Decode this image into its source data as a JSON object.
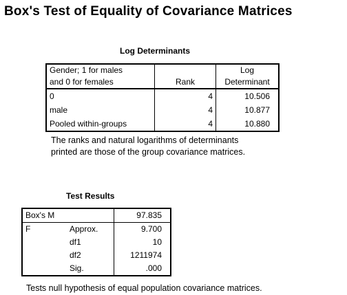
{
  "title": "Box's Test of Equality of Covariance Matrices",
  "log_determinants": {
    "caption": "Log Determinants",
    "headers": {
      "label": "Gender; 1 for males and 0 for females",
      "label_line1": "Gender; 1 for males",
      "label_line2": "and 0 for females",
      "rank": "Rank",
      "logdet_line1": "Log",
      "logdet_line2": "Determinant"
    },
    "rows": [
      {
        "label": "0",
        "rank": "4",
        "log_determinant": "10.506"
      },
      {
        "label": "male",
        "rank": "4",
        "log_determinant": "10.877"
      },
      {
        "label": "Pooled within-groups",
        "rank": "4",
        "log_determinant": "10.880"
      }
    ],
    "footnote_line1": "The ranks and natural logarithms of determinants",
    "footnote_line2": "printed are those of the group covariance matrices."
  },
  "test_results": {
    "caption": "Test Results",
    "rows": [
      {
        "c1": "Box's M",
        "c2": "",
        "value": "97.835"
      },
      {
        "c1": "F",
        "c2": "Approx.",
        "value": "9.700"
      },
      {
        "c1": "",
        "c2": "df1",
        "value": "10"
      },
      {
        "c1": "",
        "c2": "df2",
        "value": "1211974"
      },
      {
        "c1": "",
        "c2": "Sig.",
        "value": ".000"
      }
    ],
    "footnote": "Tests null hypothesis of equal population covariance matrices."
  }
}
